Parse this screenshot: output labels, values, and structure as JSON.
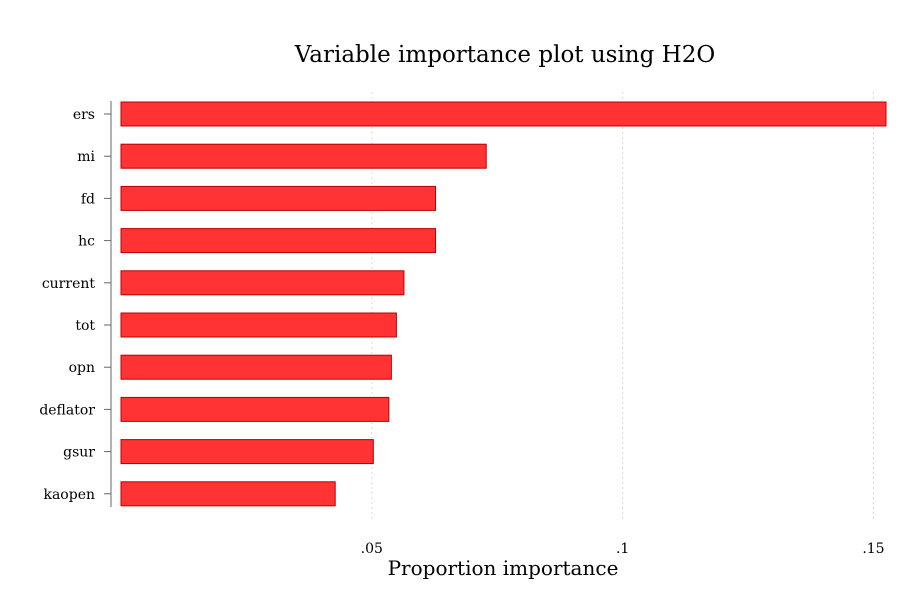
{
  "chart_data": {
    "type": "bar",
    "orientation": "horizontal",
    "title": "Variable importance plot using H2O",
    "xlabel": "Proportion importance",
    "ylabel": "",
    "categories": [
      "ers",
      "mi",
      "fd",
      "hc",
      "current",
      "tot",
      "opn",
      "deflator",
      "gsur",
      "kaopen"
    ],
    "values": [
      0.1525,
      0.0728,
      0.0627,
      0.0627,
      0.0564,
      0.0549,
      0.0539,
      0.0534,
      0.0503,
      0.0427
    ],
    "xlim": [
      0,
      0.1525
    ],
    "xticks": [
      0.05,
      0.1,
      0.15
    ],
    "xtick_labels": [
      ".05",
      ".1",
      ".15"
    ],
    "grid": true,
    "bar_color": "#ff3333",
    "bar_edge_color": "#b80000"
  }
}
